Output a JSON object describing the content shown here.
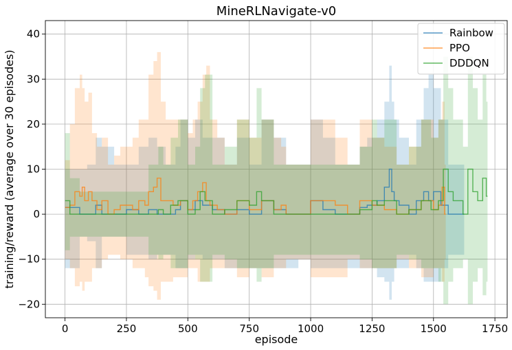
{
  "chart_data": {
    "type": "line",
    "title": "MineRLNavigate-v0",
    "xlabel": "episode",
    "ylabel": "training/reward (average over 30 episodes)",
    "xlim": [
      -80,
      1800
    ],
    "ylim": [
      -23,
      43
    ],
    "xticks": [
      0,
      250,
      500,
      750,
      1000,
      1250,
      1500,
      1750
    ],
    "yticks": [
      -20,
      -10,
      0,
      10,
      20,
      30,
      40
    ],
    "grid": true,
    "legend": "top-right",
    "series": [
      {
        "name": "Rainbow",
        "color": "#1f77b4",
        "x": [
          0,
          60,
          90,
          125,
          150,
          200,
          250,
          300,
          340,
          375,
          410,
          450,
          470,
          500,
          530,
          560,
          600,
          650,
          700,
          750,
          800,
          850,
          900,
          950,
          1000,
          1050,
          1100,
          1150,
          1200,
          1230,
          1270,
          1300,
          1320,
          1330,
          1340,
          1360,
          1400,
          1430,
          1460,
          1480,
          1500,
          1530,
          1560,
          1600,
          1620
        ],
        "y": [
          1.5,
          0,
          0,
          2,
          0,
          0,
          1,
          0,
          1,
          0,
          0,
          1,
          3,
          1,
          3,
          2,
          1,
          0,
          1,
          0,
          3,
          1,
          0,
          0,
          3,
          1,
          0,
          0,
          1.5,
          2,
          3,
          6,
          10,
          5,
          3,
          2,
          0,
          3,
          5,
          3,
          5,
          2,
          0,
          0,
          0
        ],
        "lower": [
          -12,
          -5,
          -6,
          -12,
          -5,
          -5,
          -9,
          -9,
          -10,
          -9,
          -9,
          -12,
          -12,
          -10,
          -9,
          -10,
          -10,
          -12,
          -12,
          -12,
          -12,
          -12,
          -12,
          -10,
          -12,
          -12,
          -12,
          -12,
          -12,
          -12,
          -14,
          -15,
          -19,
          -15,
          -12,
          -12,
          -9,
          -12,
          -15,
          -15,
          -15,
          -12,
          -9,
          -9,
          -9
        ],
        "upper": [
          10,
          10,
          11,
          17,
          15,
          11,
          11,
          15,
          17,
          15,
          11,
          15,
          21,
          17,
          21,
          17,
          17,
          11,
          17,
          11,
          21,
          17,
          11,
          11,
          21,
          17,
          11,
          11,
          15,
          17,
          21,
          25,
          33,
          25,
          21,
          17,
          11,
          21,
          28,
          31,
          28,
          21,
          11,
          11,
          11
        ]
      },
      {
        "name": "PPO",
        "color": "#ff7f0e",
        "x": [
          0,
          20,
          40,
          60,
          70,
          80,
          95,
          110,
          130,
          150,
          175,
          200,
          225,
          250,
          275,
          300,
          325,
          340,
          360,
          375,
          390,
          410,
          440,
          470,
          500,
          520,
          540,
          560,
          575,
          590,
          620,
          650,
          700,
          750,
          800,
          850,
          880,
          900,
          950,
          1000,
          1050,
          1100,
          1150,
          1200,
          1250,
          1300,
          1350,
          1400,
          1450,
          1500,
          1520,
          1535,
          1545
        ],
        "y": [
          1.5,
          2,
          5,
          4,
          6,
          3,
          5,
          3,
          1,
          3,
          0,
          1,
          2,
          2,
          1,
          3,
          2,
          5,
          6,
          8,
          3,
          3,
          2,
          3,
          1,
          3,
          5,
          7,
          3,
          2,
          1,
          0,
          3,
          1,
          3,
          1,
          2,
          0,
          0,
          3,
          3,
          2,
          0,
          3,
          2,
          1,
          0,
          1,
          3,
          1,
          2,
          6,
          0
        ],
        "lower": [
          -10,
          -12,
          -16,
          -15,
          -17,
          -15,
          -15,
          -12,
          -12,
          -10,
          -9,
          -9,
          -10,
          -10,
          -12,
          -12,
          -14,
          -16,
          -17,
          -19,
          -15,
          -15,
          -14,
          -14,
          -12,
          -12,
          -15,
          -15,
          -15,
          -12,
          -12,
          -12,
          -14,
          -12,
          -14,
          -12,
          -12,
          -10,
          -10,
          -14,
          -14,
          -14,
          -10,
          -12,
          -12,
          -12,
          -10,
          -12,
          -14,
          -12,
          -12,
          -15,
          -10
        ],
        "upper": [
          12,
          20,
          28,
          31,
          28,
          25,
          27,
          18,
          15,
          17,
          11,
          13,
          15,
          15,
          17,
          21,
          21,
          31,
          34,
          36,
          25,
          21,
          21,
          21,
          18,
          21,
          25,
          31,
          33,
          21,
          17,
          11,
          21,
          17,
          21,
          17,
          15,
          11,
          11,
          21,
          21,
          17,
          11,
          21,
          17,
          15,
          11,
          15,
          21,
          17,
          21,
          25,
          11
        ]
      },
      {
        "name": "DDDQN",
        "color": "#2ca02c",
        "x": [
          0,
          20,
          60,
          100,
          150,
          200,
          250,
          300,
          340,
          380,
          400,
          430,
          460,
          500,
          530,
          550,
          570,
          600,
          650,
          700,
          750,
          780,
          800,
          850,
          900,
          950,
          1000,
          1050,
          1100,
          1150,
          1200,
          1250,
          1270,
          1300,
          1350,
          1400,
          1450,
          1490,
          1520,
          1540,
          1560,
          1580,
          1620,
          1640,
          1660,
          1680,
          1700,
          1715
        ],
        "y": [
          3,
          0,
          0,
          0,
          0,
          0,
          0,
          0,
          0,
          1,
          0,
          2,
          3,
          0,
          1,
          5,
          3,
          0,
          1,
          3,
          2,
          5,
          3,
          0,
          0,
          0,
          0,
          0,
          0,
          0,
          1,
          3,
          2,
          3,
          0,
          1,
          3,
          1,
          3,
          10,
          5,
          3,
          0,
          10,
          5,
          3,
          8,
          4
        ],
        "lower": [
          -8,
          -5,
          -5,
          -5,
          -5,
          -5,
          -5,
          -5,
          -9,
          -10,
          -9,
          -12,
          -12,
          -9,
          -10,
          -15,
          -15,
          -9,
          -10,
          -12,
          -12,
          -15,
          -12,
          -9,
          -9,
          -9,
          -9,
          -9,
          -9,
          -9,
          -10,
          -12,
          -12,
          -12,
          -9,
          -10,
          -12,
          -12,
          -15,
          -20,
          -15,
          -12,
          -10,
          -20,
          -15,
          -12,
          -18,
          -15
        ],
        "upper": [
          18,
          8,
          5,
          5,
          5,
          5,
          5,
          5,
          11,
          15,
          11,
          17,
          21,
          11,
          15,
          28,
          31,
          11,
          15,
          21,
          17,
          28,
          21,
          11,
          11,
          11,
          11,
          11,
          11,
          11,
          15,
          21,
          17,
          21,
          11,
          15,
          21,
          17,
          21,
          35,
          28,
          21,
          15,
          35,
          28,
          21,
          31,
          25
        ]
      }
    ]
  }
}
